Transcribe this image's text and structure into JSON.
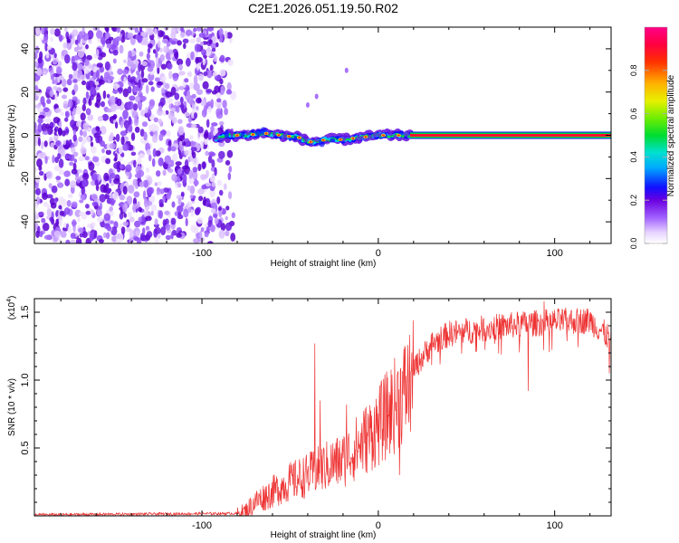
{
  "title": "C2E1.2026.051.19.50.R02",
  "chart_data": [
    {
      "type": "heatmap",
      "xlabel": "Height of straight line (km)",
      "ylabel": "Frequency (Hz)",
      "xlim": [
        -195,
        132
      ],
      "ylim": [
        -50,
        50
      ],
      "xticks": [
        -100,
        0,
        100
      ],
      "yticks": [
        -40,
        -20,
        0,
        20,
        40
      ],
      "colorbar": {
        "label": "Normalized spectral amplitude",
        "range": [
          0,
          1
        ],
        "ticks": [
          "0.0",
          "0.2",
          "0.4",
          "0.6",
          "0.8"
        ],
        "tick_values": [
          0.0,
          0.2,
          0.4,
          0.6,
          0.8
        ]
      },
      "noise_region_x": [
        -195,
        -82
      ],
      "onset_x": -90,
      "signal_track": {
        "x": [
          -92,
          -85,
          -75,
          -65,
          -55,
          -45,
          -40,
          -35,
          -30,
          -20,
          -10,
          0,
          10,
          18,
          30,
          60,
          100,
          132
        ],
        "y": [
          -2,
          0,
          0,
          1,
          0,
          -1,
          -3,
          -3,
          -2,
          -2,
          -1,
          0,
          0,
          0,
          0,
          0,
          0,
          0
        ]
      },
      "outliers": [
        [
          -40,
          14
        ],
        [
          -35,
          18
        ],
        [
          -18,
          30
        ]
      ]
    },
    {
      "type": "line",
      "xlabel": "Height of straight line (km)",
      "ylabel": "SNR (10 * v/v)",
      "multiplier": "(x10",
      "multiplier_exp": "4",
      "multiplier_close": ")",
      "xlim": [
        -195,
        132
      ],
      "ylim": [
        0,
        1.6
      ],
      "xticks": [
        -100,
        0,
        100
      ],
      "yticks": [
        "0.5",
        "1.0",
        "1.5"
      ],
      "ytick_values": [
        0.5,
        1.0,
        1.5
      ],
      "color": "#ee3333",
      "envelope": {
        "x": [
          -195,
          -80,
          -75,
          -70,
          -60,
          -50,
          -40,
          -30,
          -20,
          -10,
          0,
          10,
          20,
          30,
          40,
          60,
          80,
          100,
          120,
          132
        ],
        "y": [
          0.01,
          0.02,
          0.05,
          0.12,
          0.2,
          0.28,
          0.33,
          0.4,
          0.45,
          0.58,
          0.72,
          0.9,
          1.1,
          1.28,
          1.36,
          1.4,
          1.43,
          1.45,
          1.46,
          1.32
        ]
      },
      "spikes": [
        [
          -36,
          1.27
        ],
        [
          -33,
          0.85
        ],
        [
          -18,
          0.82
        ],
        [
          12,
          0.3
        ],
        [
          85,
          0.92
        ],
        [
          94,
          1.58
        ],
        [
          131,
          1.05
        ]
      ]
    }
  ]
}
